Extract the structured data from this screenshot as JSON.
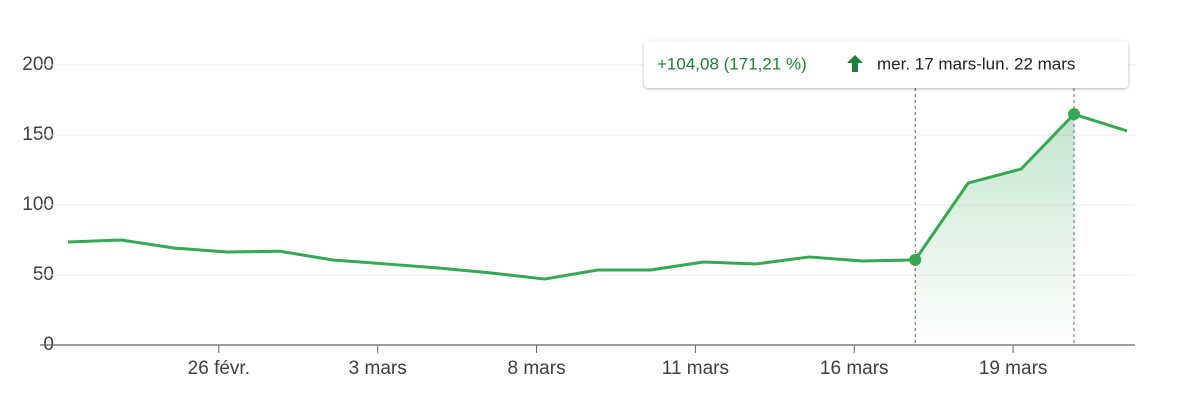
{
  "chart_data": {
    "type": "line",
    "categories": [
      null,
      null,
      null,
      "26 févr.",
      null,
      null,
      "3 mars",
      null,
      null,
      "8 mars",
      null,
      null,
      "11 mars",
      null,
      null,
      "16 mars",
      null,
      null,
      "19 mars",
      null,
      null
    ],
    "values": [
      73.6,
      75,
      69.3,
      66.4,
      67,
      60.7,
      57.9,
      55,
      51.4,
      47.1,
      53.6,
      53.6,
      59.3,
      57.9,
      62.9,
      60,
      60.79,
      115.7,
      125.7,
      164.87,
      152.9
    ],
    "color": "#34a853",
    "ylim": [
      0,
      200
    ],
    "yticks": [
      0,
      50,
      100,
      150,
      200
    ],
    "grid": true,
    "highlight": [
      16,
      19
    ],
    "annotations": [
      "+104,08 (171,21 %)",
      "mer. 17 mars-lun. 22 mars"
    ]
  }
}
